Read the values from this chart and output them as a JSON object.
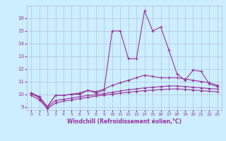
{
  "xlabel": "Windchill (Refroidissement éolien,°C)",
  "x": [
    0,
    1,
    2,
    3,
    4,
    5,
    6,
    7,
    8,
    9,
    10,
    11,
    12,
    13,
    14,
    15,
    16,
    17,
    18,
    19,
    20,
    21,
    22,
    23
  ],
  "line1": [
    10.1,
    9.8,
    9.0,
    9.9,
    9.9,
    10.0,
    10.0,
    10.3,
    10.1,
    10.3,
    15.0,
    15.0,
    12.8,
    12.8,
    16.6,
    15.0,
    15.3,
    13.5,
    11.6,
    11.1,
    11.9,
    11.8,
    10.8,
    10.6
  ],
  "line2": [
    10.1,
    9.8,
    9.0,
    9.9,
    9.9,
    10.0,
    10.1,
    10.3,
    10.2,
    10.4,
    10.7,
    10.9,
    11.1,
    11.3,
    11.5,
    11.4,
    11.3,
    11.3,
    11.3,
    11.2,
    11.1,
    11.0,
    10.9,
    10.7
  ],
  "line3": [
    10.05,
    9.7,
    8.95,
    9.5,
    9.6,
    9.7,
    9.8,
    9.9,
    9.95,
    10.05,
    10.15,
    10.25,
    10.35,
    10.42,
    10.5,
    10.55,
    10.6,
    10.65,
    10.65,
    10.6,
    10.55,
    10.5,
    10.45,
    10.4
  ],
  "line4": [
    9.9,
    9.55,
    8.85,
    9.3,
    9.45,
    9.55,
    9.65,
    9.75,
    9.85,
    9.92,
    10.0,
    10.08,
    10.15,
    10.22,
    10.28,
    10.32,
    10.37,
    10.4,
    10.42,
    10.38,
    10.33,
    10.28,
    10.23,
    10.18
  ],
  "line_color": "#993399",
  "bg_color": "#cceeff",
  "grid_color": "#aabbcc",
  "ylim": [
    8.75,
    17.0
  ],
  "yticks": [
    9,
    10,
    11,
    12,
    13,
    14,
    15,
    16
  ],
  "xlim": [
    -0.5,
    23.5
  ],
  "figsize": [
    3.2,
    2.0
  ],
  "dpi": 100
}
